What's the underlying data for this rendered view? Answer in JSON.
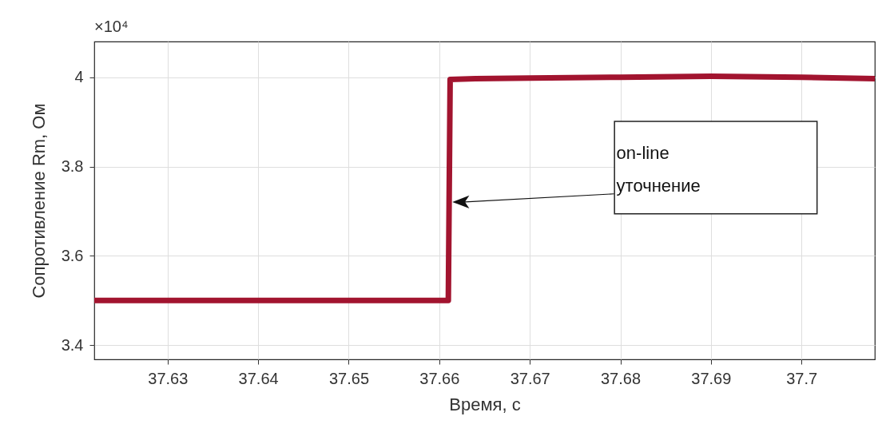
{
  "chart_data": {
    "type": "line",
    "xlabel": "Время, с",
    "ylabel": "Сопротивление Rm, Ом",
    "series": [
      {
        "color": "#a2142f",
        "x": [
          37.6219,
          37.63,
          37.64,
          37.65,
          37.661,
          37.6612,
          37.664,
          37.67,
          37.68,
          37.69,
          37.7,
          37.7081
        ],
        "values": [
          3.5,
          3.5,
          3.5,
          3.5,
          3.5,
          3.995,
          3.997,
          3.998,
          4.0,
          4.002,
          4.0,
          3.997
        ]
      }
    ],
    "xlim": [
      37.6219,
      37.7081
    ],
    "ylim": [
      3.368,
      4.08
    ],
    "xticks": [
      37.63,
      37.64,
      37.65,
      37.66,
      37.67,
      37.68,
      37.69,
      37.7
    ],
    "yticks": [
      3.4,
      3.6,
      3.8,
      4
    ],
    "grid": true,
    "line_style": "solid",
    "marker": "none",
    "annotations": [
      "×10⁴",
      "on-line\nуточнение"
    ]
  }
}
